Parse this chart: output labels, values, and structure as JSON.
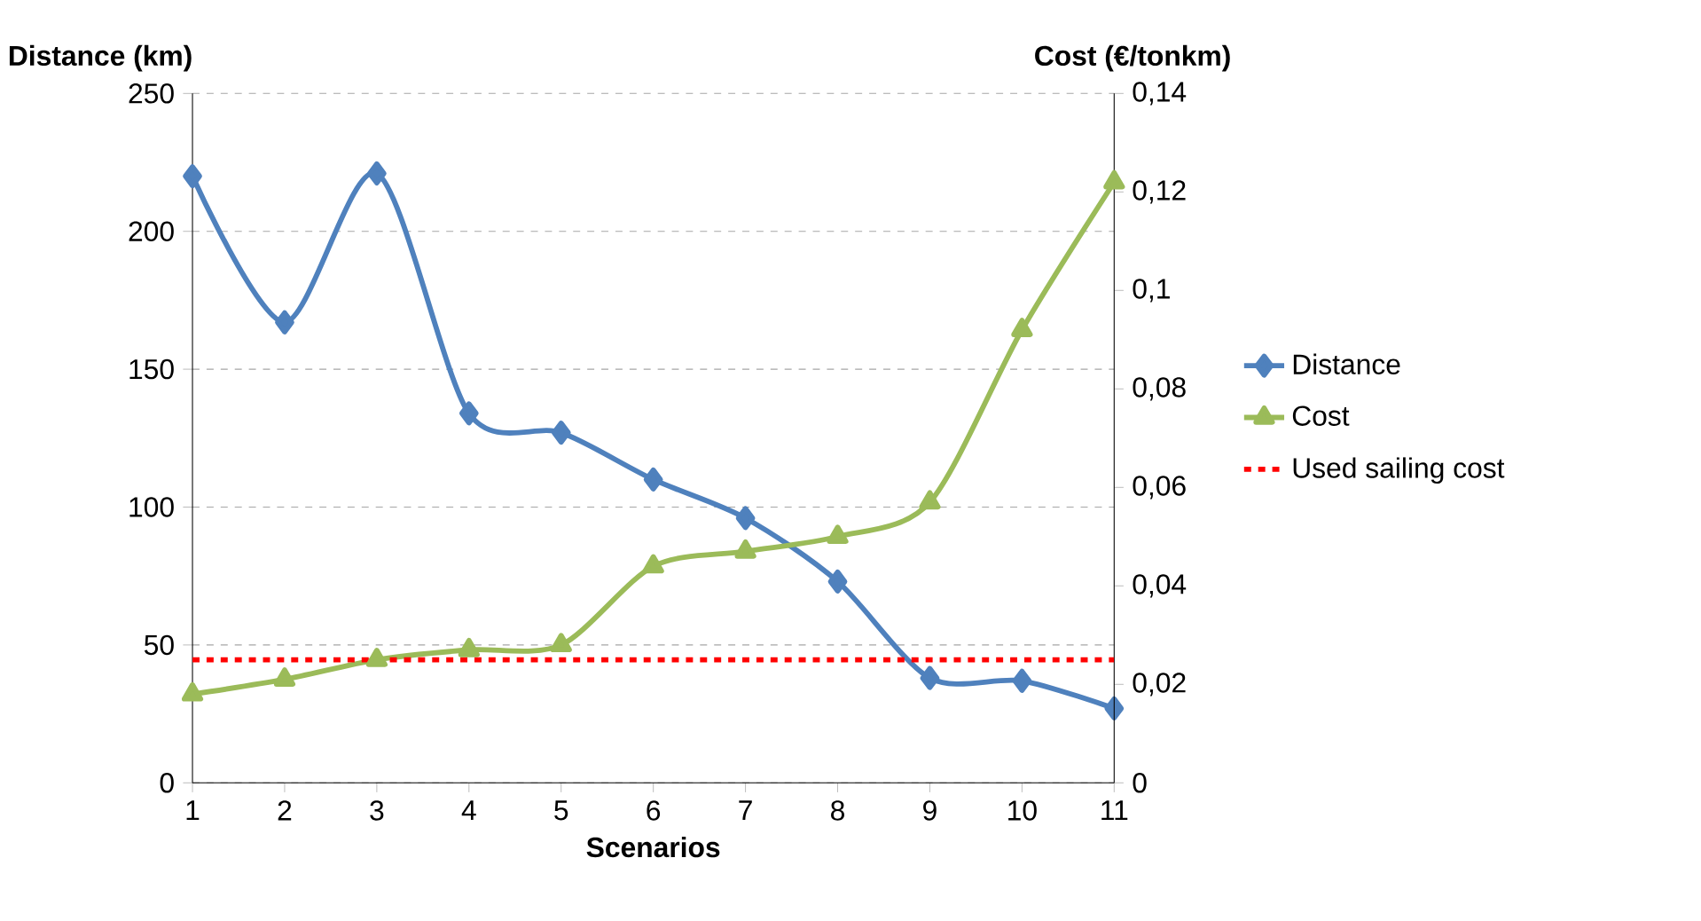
{
  "chart_data": {
    "type": "line",
    "xlabel": "Scenarios",
    "ylabel": "Distance (km)",
    "y2label": "Cost (€/tonkm)",
    "categories": [
      "1",
      "2",
      "3",
      "4",
      "5",
      "6",
      "7",
      "8",
      "9",
      "10",
      "11"
    ],
    "series": [
      {
        "name": "Distance",
        "color": "#4f81bd",
        "marker": "diamond",
        "values": [
          220,
          167,
          221,
          134,
          127,
          110,
          96,
          73,
          38,
          37,
          27
        ]
      },
      {
        "name": "Cost",
        "color": "#9bbb59",
        "marker": "triangle",
        "axis": "y2",
        "values": [
          0.018,
          0.021,
          0.025,
          0.027,
          0.028,
          0.044,
          0.047,
          0.05,
          0.057,
          0.092,
          0.122
        ]
      }
    ],
    "ylim": [
      0,
      250
    ],
    "yticks": [
      0,
      50,
      100,
      150,
      200,
      250
    ],
    "y2lim": [
      0,
      0.14
    ],
    "y2ticks": [
      0,
      {
        "value": 0.02,
        "label": "0,02"
      },
      {
        "value": 0.04,
        "label": "0,04"
      },
      {
        "value": 0.06,
        "label": "0,06"
      },
      {
        "value": 0.08,
        "label": "0,08"
      },
      {
        "value": 0.1,
        "label": "0,1"
      },
      {
        "value": 0.12,
        "label": "0,12"
      },
      {
        "value": 0.14,
        "label": "0,14"
      }
    ],
    "ref_lines": [
      {
        "axis": "y2",
        "value": 0.025,
        "label": "Used sailing cost",
        "color": "#ff0000",
        "line_style": "dashed"
      }
    ],
    "grid": "y",
    "legend": "right"
  }
}
